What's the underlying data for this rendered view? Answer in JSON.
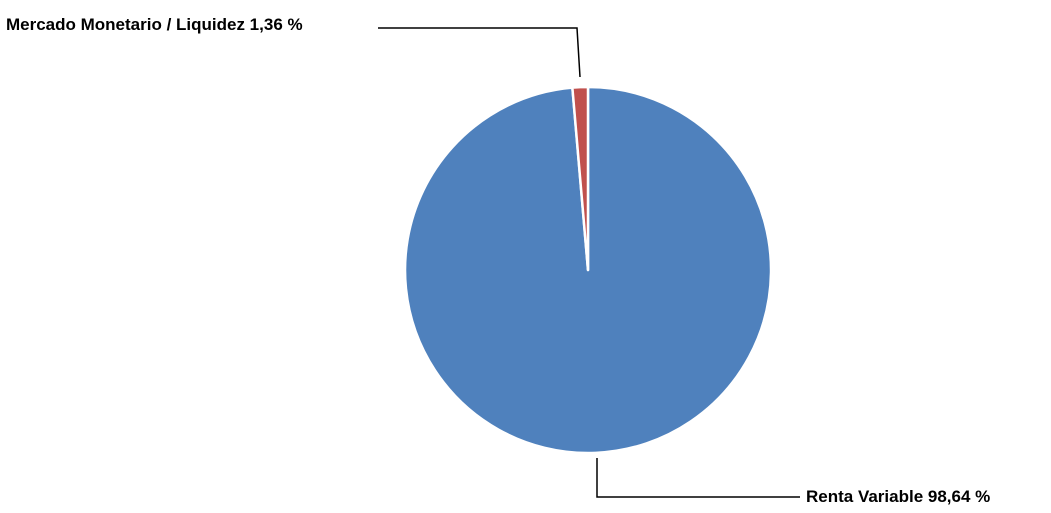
{
  "chart_data": {
    "type": "pie",
    "slices": [
      {
        "label": "Renta Variable",
        "value": 98.64,
        "display": "Renta Variable 98,64 %",
        "color": "#4F81BD"
      },
      {
        "label": "Mercado Monetario / Liquidez",
        "value": 1.36,
        "display": "Mercado Monetario / Liquidez 1,36 %",
        "color": "#C0504D"
      }
    ],
    "start_angle_deg": 0,
    "direction": "clockwise",
    "slice_border_color": "#ffffff",
    "leader_line_color": "#000000",
    "legend": "none"
  }
}
